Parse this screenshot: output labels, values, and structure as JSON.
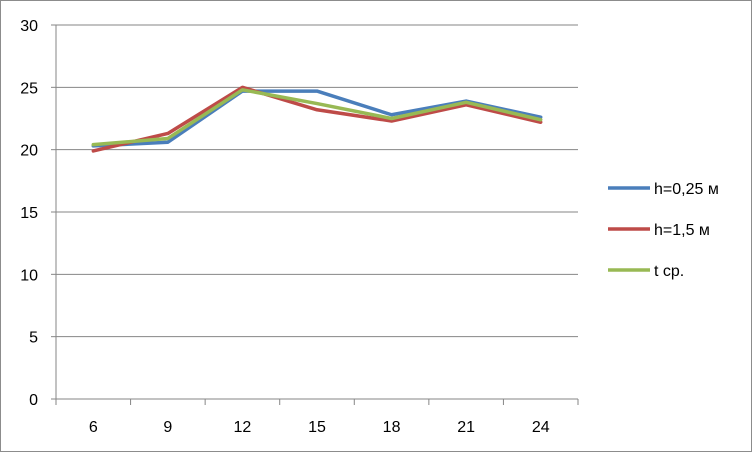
{
  "chart_data": {
    "type": "line",
    "categories": [
      "6",
      "9",
      "12",
      "15",
      "18",
      "21",
      "24"
    ],
    "series": [
      {
        "name": "h=0,25 м",
        "color": "#4a7ebb",
        "values": [
          20.3,
          20.6,
          24.7,
          24.7,
          22.8,
          23.9,
          22.6
        ]
      },
      {
        "name": "h=1,5 м",
        "color": "#be4b48",
        "values": [
          19.9,
          21.3,
          25.0,
          23.2,
          22.3,
          23.6,
          22.2
        ]
      },
      {
        "name": "t ср.",
        "color": "#98b954",
        "values": [
          20.4,
          20.9,
          24.8,
          23.7,
          22.5,
          23.8,
          22.4
        ]
      }
    ],
    "yticks": [
      "0",
      "5",
      "10",
      "15",
      "20",
      "25",
      "30"
    ],
    "ylim": [
      0,
      30
    ],
    "grid": true,
    "legend": "right"
  }
}
